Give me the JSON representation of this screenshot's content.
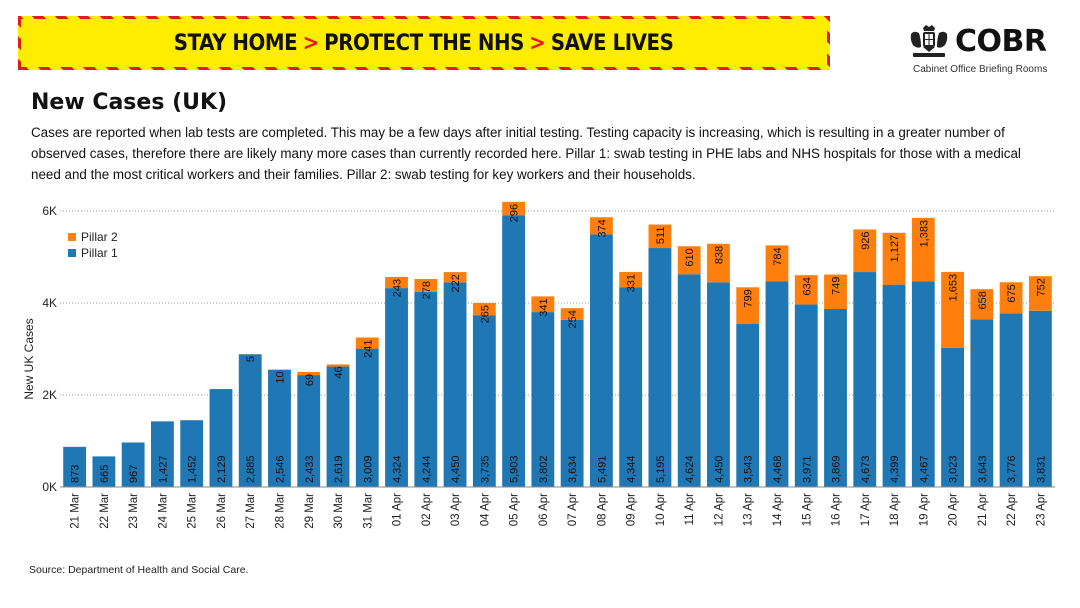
{
  "banner": {
    "part1": "STAY HOME",
    "part2": "PROTECT THE NHS",
    "part3": "SAVE LIVES",
    "separator": ">",
    "colors": {
      "background": "#ffed00",
      "accent": "#e01b1b"
    }
  },
  "logo": {
    "name": "COBR",
    "subtitle": "Cabinet Office Briefing Rooms",
    "icon": "royal-crest-icon"
  },
  "title": "New Cases (UK)",
  "description": "Cases are reported when lab tests are completed. This may be a few days after initial testing. Testing capacity is increasing, which is resulting in a greater number of observed cases, therefore there are likely many more cases than currently recorded here. Pillar 1: swab testing in PHE labs and NHS hospitals for those with a medical need and the most critical workers and their families. Pillar 2: swab testing for key workers and their households.",
  "source": "Source: Department of Health and Social Care.",
  "chart_data": {
    "type": "bar",
    "stacked": true,
    "categories": [
      "21 Mar",
      "22 Mar",
      "23 Mar",
      "24 Mar",
      "25 Mar",
      "26 Mar",
      "27 Mar",
      "28 Mar",
      "29 Mar",
      "30 Mar",
      "31 Mar",
      "01 Apr",
      "02 Apr",
      "03 Apr",
      "04 Apr",
      "05 Apr",
      "06 Apr",
      "07 Apr",
      "08 Apr",
      "09 Apr",
      "10 Apr",
      "11 Apr",
      "12 Apr",
      "13 Apr",
      "14 Apr",
      "15 Apr",
      "16 Apr",
      "17 Apr",
      "18 Apr",
      "19 Apr",
      "20 Apr",
      "21 Apr",
      "22 Apr",
      "23 Apr"
    ],
    "series": [
      {
        "name": "Pillar 1",
        "color": "#1f77b4",
        "values": [
          873,
          665,
          967,
          1427,
          1452,
          2129,
          2885,
          2546,
          2433,
          2619,
          3009,
          4324,
          4244,
          4450,
          3735,
          5903,
          3802,
          3634,
          5491,
          4344,
          5195,
          4624,
          4450,
          3543,
          4468,
          3971,
          3869,
          4673,
          4399,
          4467,
          3023,
          3643,
          3776,
          3831
        ],
        "labels": [
          "873",
          "665",
          "967",
          "1,427",
          "1,452",
          "2,129",
          "2,885",
          "2,546",
          "2,433",
          "2,619",
          "3,009",
          "4,324",
          "4,244",
          "4,450",
          "3,735",
          "5,903",
          "3,802",
          "3,634",
          "5,491",
          "4,344",
          "5,195",
          "4,624",
          "4,450",
          "3,543",
          "4,468",
          "3,971",
          "3,869",
          "4,673",
          "4,399",
          "4,467",
          "3,023",
          "3,643",
          "3,776",
          "3,831"
        ]
      },
      {
        "name": "Pillar 2",
        "color": "#ff7f0e",
        "values": [
          0,
          0,
          0,
          0,
          0,
          0,
          5,
          10,
          69,
          46,
          241,
          243,
          278,
          222,
          265,
          296,
          341,
          254,
          374,
          331,
          511,
          610,
          838,
          799,
          784,
          634,
          749,
          926,
          1127,
          1383,
          1653,
          658,
          675,
          752
        ],
        "labels": [
          "",
          "",
          "",
          "",
          "",
          "",
          "5",
          "10",
          "69",
          "46",
          "241",
          "243",
          "278",
          "222",
          "265",
          "296",
          "341",
          "254",
          "374",
          "331",
          "511",
          "610",
          "838",
          "799",
          "784",
          "634",
          "749",
          "926",
          "1,127",
          "1,383",
          "1,653",
          "658",
          "675",
          "752"
        ]
      }
    ],
    "ylabel": "New UK Cases",
    "xlabel": "",
    "ylim": [
      0,
      6000
    ],
    "yticks": [
      0,
      2000,
      4000,
      6000
    ],
    "ytick_labels": [
      "0K",
      "2K",
      "4K",
      "6K"
    ],
    "grid": true,
    "legend_position": "top-left"
  }
}
